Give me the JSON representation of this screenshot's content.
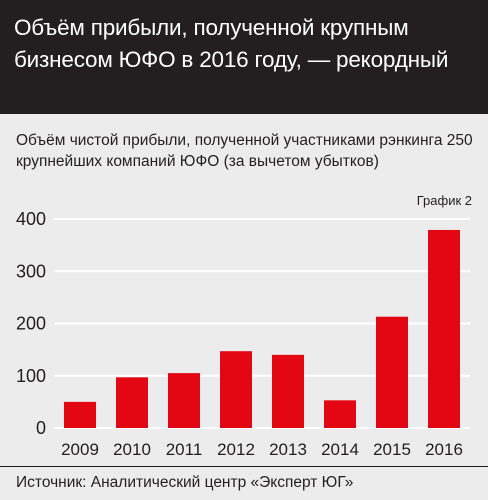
{
  "header": {
    "title": "Объём прибыли, полученной крупным бизнесом ЮФО в 2016 году, — рекордный"
  },
  "chart_data": {
    "type": "bar",
    "title": "Объём чистой прибыли, полученной участниками рэнкинга 250 крупнейших компаний ЮФО (за вычетом убытков)",
    "label": "График 2",
    "categories": [
      "2009",
      "2010",
      "2011",
      "2012",
      "2013",
      "2014",
      "2015",
      "2016"
    ],
    "values": [
      50,
      97,
      105,
      147,
      140,
      53,
      213,
      379
    ],
    "ylim": [
      0,
      400
    ],
    "yticks": [
      "0",
      "100",
      "200",
      "300",
      "400"
    ],
    "grid": true,
    "bar_color": "#e30613",
    "grid_color": "#ffffff"
  },
  "source": "Источник: Аналитический центр «Эксперт ЮГ»"
}
